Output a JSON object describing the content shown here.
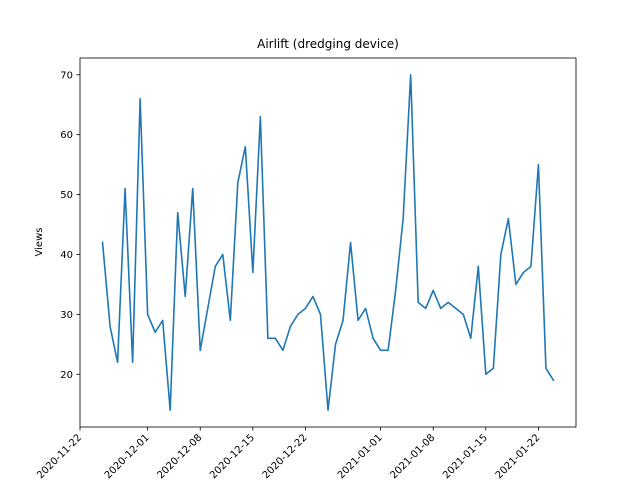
{
  "chart_data": {
    "type": "line",
    "title": "Airlift (dredging device)",
    "xlabel": "",
    "ylabel": "Views",
    "x_tick_labels": [
      "2020-11-22",
      "2020-12-01",
      "2020-12-08",
      "2020-12-15",
      "2020-12-22",
      "2021-01-01",
      "2021-01-08",
      "2021-01-15",
      "2021-01-22"
    ],
    "x_tick_days": [
      0,
      9,
      16,
      23,
      30,
      40,
      47,
      54,
      61
    ],
    "xlim_days": [
      0,
      66
    ],
    "y_ticks": [
      20,
      30,
      40,
      50,
      60,
      70
    ],
    "ylim": [
      11.2,
      72.8
    ],
    "grid": false,
    "series": [
      {
        "name": "Views",
        "color": "#1f77b4",
        "start_date": "2020-11-25",
        "start_day": 3,
        "values": [
          42,
          28,
          22,
          51,
          22,
          66,
          30,
          27,
          29,
          14,
          47,
          33,
          51,
          24,
          31,
          38,
          40,
          29,
          52,
          58,
          37,
          63,
          26,
          26,
          24,
          28,
          30,
          31,
          33,
          30,
          14,
          25,
          29,
          42,
          29,
          31,
          26,
          24,
          24,
          34,
          46,
          70,
          32,
          31,
          34,
          31,
          32,
          31,
          30,
          26,
          38,
          20,
          21,
          40,
          46,
          35,
          37,
          38,
          55,
          21,
          19
        ]
      }
    ]
  }
}
